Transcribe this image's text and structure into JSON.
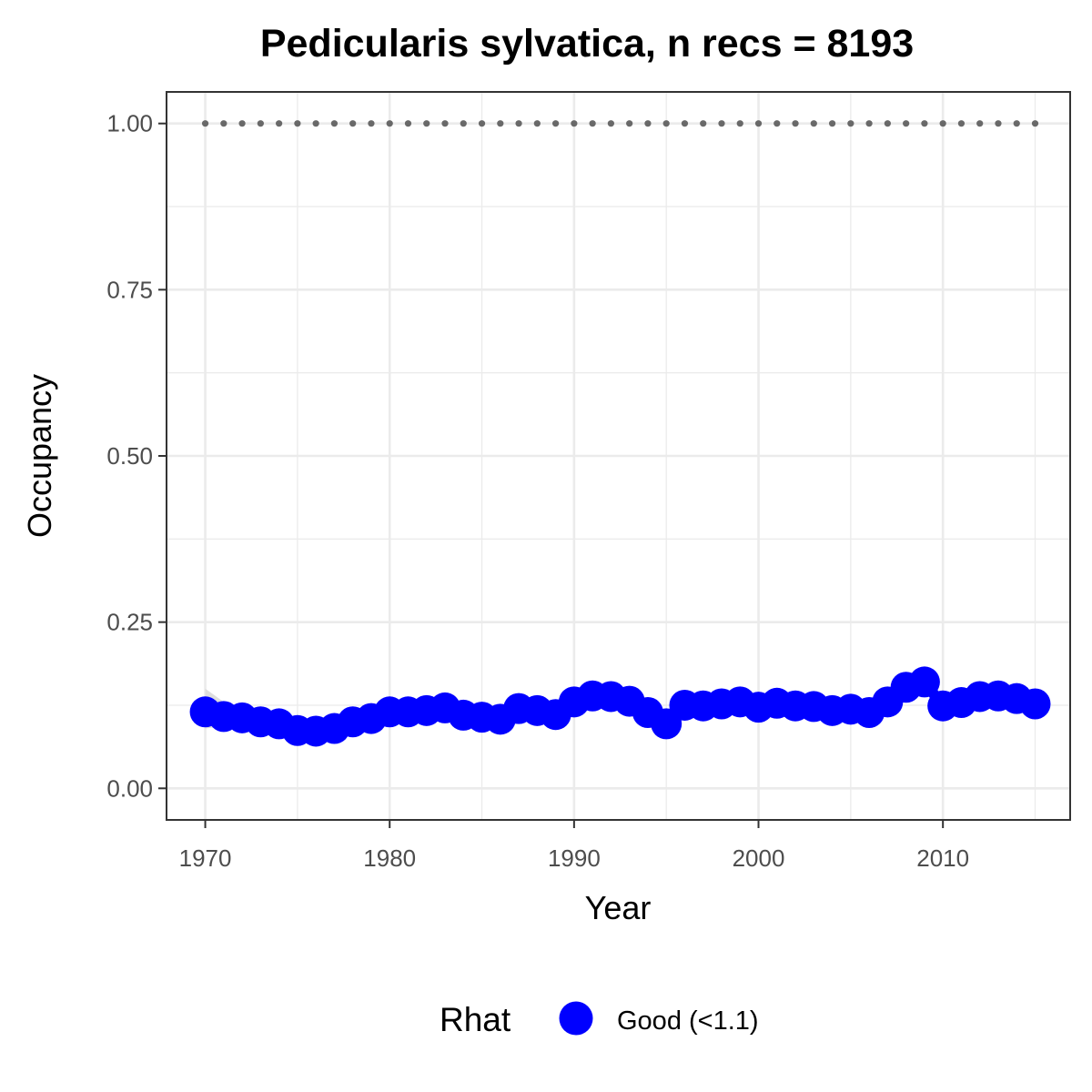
{
  "chart_data": {
    "type": "line",
    "title": "Pedicularis sylvatica, n recs = 8193",
    "xlabel": "Year",
    "ylabel": "Occupancy",
    "xlim": [
      1967.9,
      2016.9
    ],
    "ylim": [
      -0.0475,
      1.0475
    ],
    "xticks": [
      1970,
      1980,
      1990,
      2000,
      2010
    ],
    "xtick_labels": [
      "1970",
      "1980",
      "1990",
      "2000",
      "2010"
    ],
    "yticks": [
      0.0,
      0.25,
      0.5,
      0.75,
      1.0
    ],
    "ytick_labels": [
      "0.00",
      "0.25",
      "0.50",
      "0.75",
      "1.00"
    ],
    "grid": true,
    "legend": {
      "title": "Rhat",
      "position": "bottom",
      "entries": [
        {
          "label": "Good (<1.1)",
          "color": "#0000FF"
        }
      ]
    },
    "x": [
      1970,
      1971,
      1972,
      1973,
      1974,
      1975,
      1976,
      1977,
      1978,
      1979,
      1980,
      1981,
      1982,
      1983,
      1984,
      1985,
      1986,
      1987,
      1988,
      1989,
      1990,
      1991,
      1992,
      1993,
      1994,
      1995,
      1996,
      1997,
      1998,
      1999,
      2000,
      2001,
      2002,
      2003,
      2004,
      2005,
      2006,
      2007,
      2008,
      2009,
      2010,
      2011,
      2012,
      2013,
      2014,
      2015
    ],
    "series": [
      {
        "name": "Good (<1.1)",
        "color": "#0000FF",
        "values": [
          0.115,
          0.108,
          0.106,
          0.1,
          0.097,
          0.087,
          0.086,
          0.09,
          0.1,
          0.105,
          0.115,
          0.115,
          0.117,
          0.121,
          0.11,
          0.107,
          0.104,
          0.12,
          0.117,
          0.111,
          0.13,
          0.139,
          0.138,
          0.131,
          0.114,
          0.097,
          0.125,
          0.124,
          0.127,
          0.13,
          0.122,
          0.128,
          0.124,
          0.123,
          0.117,
          0.119,
          0.114,
          0.13,
          0.152,
          0.16,
          0.124,
          0.129,
          0.138,
          0.139,
          0.135,
          0.127
        ]
      },
      {
        "name": "",
        "style": "dotted",
        "color": "#696969",
        "values": [
          1,
          1,
          1,
          1,
          1,
          1,
          1,
          1,
          1,
          1,
          1,
          1,
          1,
          1,
          1,
          1,
          1,
          1,
          1,
          1,
          1,
          1,
          1,
          1,
          1,
          1,
          1,
          1,
          1,
          1,
          1,
          1,
          1,
          1,
          1,
          1,
          1,
          1,
          1,
          1,
          1,
          1,
          1,
          1,
          1,
          1
        ]
      }
    ],
    "band": {
      "color": "#d9d9d9",
      "lower": [
        0.09,
        0.093,
        0.097,
        0.094,
        0.092,
        0.082,
        0.081,
        0.085,
        0.094,
        0.1,
        0.11,
        0.11,
        0.112,
        0.116,
        0.105,
        0.102,
        0.099,
        0.115,
        0.112,
        0.106,
        0.125,
        0.134,
        0.133,
        0.126,
        0.109,
        0.092,
        0.12,
        0.119,
        0.122,
        0.125,
        0.117,
        0.123,
        0.119,
        0.118,
        0.112,
        0.114,
        0.109,
        0.125,
        0.147,
        0.155,
        0.119,
        0.124,
        0.133,
        0.134,
        0.13,
        0.122
      ],
      "upper": [
        0.15,
        0.13,
        0.118,
        0.106,
        0.102,
        0.092,
        0.091,
        0.095,
        0.106,
        0.11,
        0.12,
        0.12,
        0.122,
        0.126,
        0.115,
        0.112,
        0.109,
        0.125,
        0.122,
        0.116,
        0.135,
        0.144,
        0.143,
        0.136,
        0.119,
        0.102,
        0.13,
        0.129,
        0.132,
        0.135,
        0.127,
        0.133,
        0.129,
        0.128,
        0.122,
        0.124,
        0.119,
        0.135,
        0.157,
        0.165,
        0.129,
        0.134,
        0.143,
        0.144,
        0.14,
        0.132
      ]
    }
  }
}
